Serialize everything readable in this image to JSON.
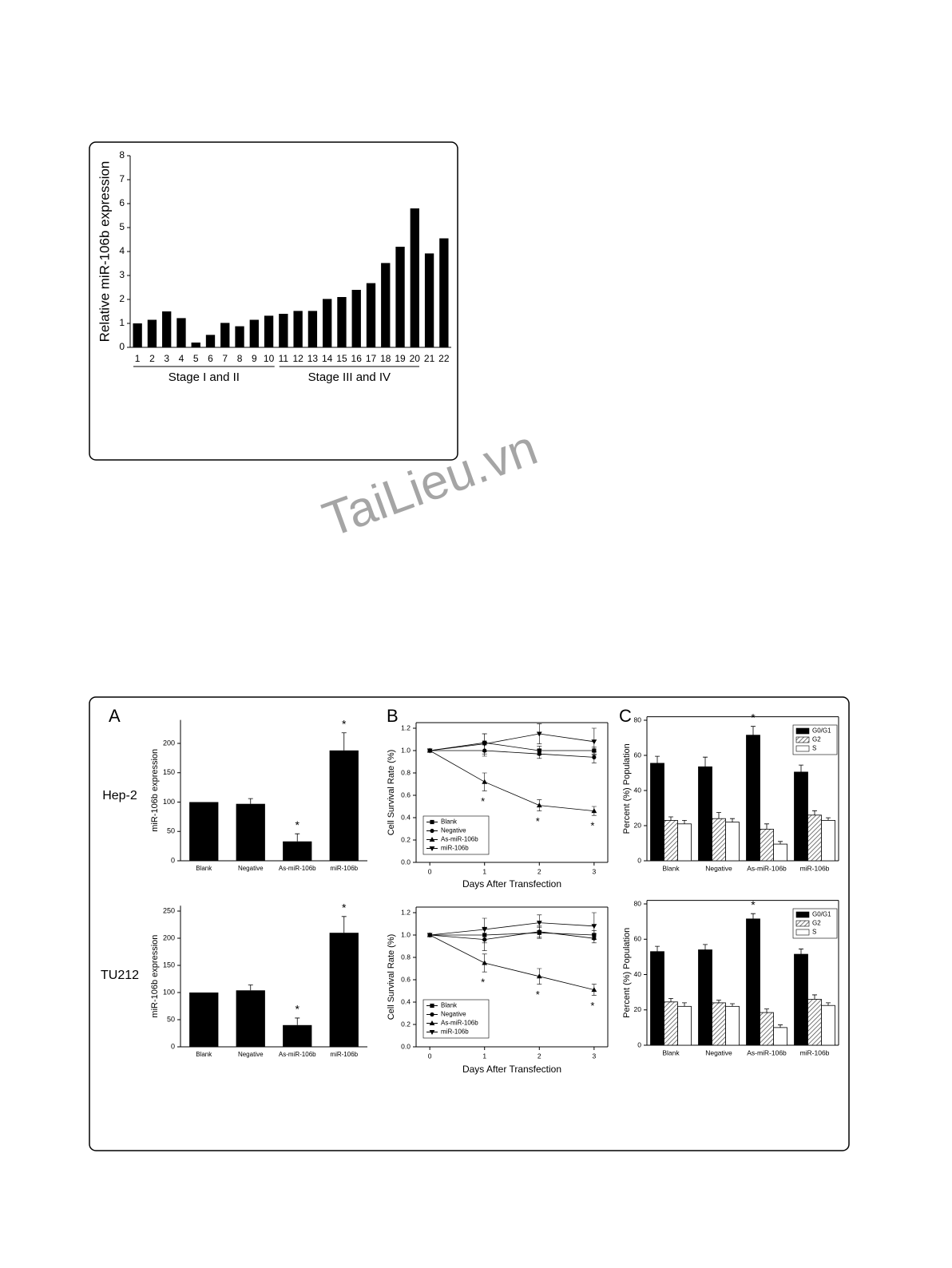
{
  "watermark": "TaiLieu.vn",
  "chart_data": [
    {
      "type": "bar",
      "ylabel": "Relative miR-106b expression",
      "categories": [
        "1",
        "2",
        "3",
        "4",
        "5",
        "6",
        "7",
        "8",
        "9",
        "10",
        "11",
        "12",
        "13",
        "14",
        "15",
        "16",
        "17",
        "18",
        "19",
        "20",
        "21",
        "22"
      ],
      "values": [
        1.0,
        1.15,
        1.5,
        1.22,
        0.2,
        0.52,
        1.02,
        0.88,
        1.15,
        1.32,
        1.4,
        1.52,
        1.52,
        2.02,
        2.1,
        2.4,
        2.68,
        3.52,
        4.2,
        5.8,
        3.92,
        4.55
      ],
      "color": "#000000",
      "ylim": [
        0,
        8
      ],
      "yticks": [
        0,
        1,
        2,
        3,
        4,
        5,
        6,
        7,
        8
      ],
      "group_labels": [
        "Stage I and II",
        "Stage III and IV"
      ]
    },
    {
      "type": "bar",
      "panel_label": "A",
      "row_label": "Hep-2",
      "ylabel": "miR-106b expression",
      "categories": [
        "Blank",
        "Negative",
        "As-miR-106b",
        "miR-106b"
      ],
      "values": [
        100,
        97,
        33,
        188
      ],
      "errors": [
        null,
        9,
        13,
        30
      ],
      "annotations": [
        null,
        null,
        "*",
        "*"
      ],
      "color": "#000000",
      "ylim": [
        0,
        240
      ],
      "yticks": [
        0,
        50,
        100,
        150,
        200
      ]
    },
    {
      "type": "bar",
      "row_label": "TU212",
      "ylabel": "miR-106b expression",
      "categories": [
        "Blank",
        "Negative",
        "As-miR-106b",
        "miR-106b"
      ],
      "values": [
        100,
        104,
        40,
        210
      ],
      "errors": [
        null,
        10,
        13,
        30
      ],
      "annotations": [
        null,
        null,
        "*",
        "*"
      ],
      "color": "#000000",
      "ylim": [
        0,
        260
      ],
      "yticks": [
        0,
        50,
        100,
        150,
        200,
        250
      ]
    },
    {
      "type": "line",
      "panel_label": "B",
      "xlabel": "Days After Transfection",
      "ylabel": "Cell Survival Rate (%)",
      "x": [
        0,
        1,
        2,
        3
      ],
      "xlim": [
        -0.25,
        3.25
      ],
      "xticks": [
        0,
        1,
        2,
        3
      ],
      "ylim": [
        0,
        1.25
      ],
      "yticks": [
        {
          "value": 0,
          "label": "0.0"
        },
        0.2,
        0.4,
        0.6,
        0.8,
        {
          "value": 1,
          "label": "1.0"
        },
        1.2
      ],
      "annotations": [
        null,
        "*",
        "*",
        "*"
      ],
      "series": [
        {
          "name": "Blank",
          "color": "#000000",
          "marker": "square",
          "values": [
            1,
            1.07,
            1.0,
            1.0
          ],
          "errors": [
            null,
            0.08,
            0.04,
            0.03
          ]
        },
        {
          "name": "Negative",
          "color": "#000000",
          "marker": "circle",
          "values": [
            1,
            1.0,
            0.97,
            0.94
          ],
          "errors": [
            null,
            0.05,
            0.04,
            0.05
          ]
        },
        {
          "name": "As-miR-106b",
          "color": "#000000",
          "marker": "triangle-up",
          "values": [
            1,
            0.72,
            0.51,
            0.46
          ],
          "errors": [
            null,
            0.08,
            0.05,
            0.04
          ]
        },
        {
          "name": "miR-106b",
          "color": "#000000",
          "marker": "triangle-down",
          "values": [
            1,
            1.06,
            1.15,
            1.08
          ],
          "errors": [
            null,
            0.09,
            0.09,
            0.12
          ]
        }
      ]
    },
    {
      "type": "line",
      "xlabel": "Days After Transfection",
      "ylabel": "Cell Survival Rate (%)",
      "x": [
        0,
        1,
        2,
        3
      ],
      "xlim": [
        -0.25,
        3.25
      ],
      "xticks": [
        0,
        1,
        2,
        3
      ],
      "ylim": [
        0,
        1.25
      ],
      "yticks": [
        {
          "value": 0,
          "label": "0.0"
        },
        0.2,
        0.4,
        0.6,
        0.8,
        {
          "value": 1,
          "label": "1.0"
        },
        1.2
      ],
      "annotations": [
        null,
        "*",
        "*",
        "*"
      ],
      "series": [
        {
          "name": "Blank",
          "color": "#000000",
          "marker": "square",
          "values": [
            1,
            1.0,
            1.02,
            1.0
          ],
          "errors": [
            null,
            0.07,
            0.05,
            0.04
          ]
        },
        {
          "name": "Negative",
          "color": "#000000",
          "marker": "circle",
          "values": [
            1,
            0.96,
            1.03,
            0.97
          ],
          "errors": [
            null,
            0.1,
            0.05,
            0.04
          ]
        },
        {
          "name": "As-miR-106b",
          "color": "#000000",
          "marker": "triangle-up",
          "values": [
            1,
            0.75,
            0.63,
            0.51
          ],
          "errors": [
            null,
            0.08,
            0.07,
            0.05
          ]
        },
        {
          "name": "miR-106b",
          "color": "#000000",
          "marker": "triangle-down",
          "values": [
            1,
            1.05,
            1.11,
            1.08
          ],
          "errors": [
            null,
            0.1,
            0.07,
            0.12
          ]
        }
      ]
    },
    {
      "type": "bar",
      "panel_label": "C",
      "ylabel": "Percent (%) Population",
      "categories": [
        "Blank",
        "Negative",
        "As-miR-106b",
        "miR-106b"
      ],
      "ylim": [
        0,
        82
      ],
      "yticks": [
        0,
        20,
        40,
        60,
        80
      ],
      "annotations": [
        null,
        null,
        "*",
        null
      ],
      "series": [
        {
          "name": "G0/G1",
          "color": "#000000",
          "values": [
            55.5,
            53.5,
            71.5,
            50.5
          ],
          "errors": [
            4,
            5.5,
            5,
            4
          ]
        },
        {
          "name": "G2",
          "color": "#888888",
          "pattern": "hatch",
          "values": [
            23,
            24,
            18,
            26
          ],
          "errors": [
            2,
            3.5,
            3,
            2.5
          ]
        },
        {
          "name": "S",
          "color": "#ffffff",
          "values": [
            21,
            22,
            9.5,
            23
          ],
          "errors": [
            2,
            2,
            1.5,
            1.5
          ]
        }
      ]
    },
    {
      "type": "bar",
      "ylabel": "Percent (%) Population",
      "categories": [
        "Blank",
        "Negative",
        "As-miR-106b",
        "miR-106b"
      ],
      "ylim": [
        0,
        82
      ],
      "yticks": [
        0,
        20,
        40,
        60,
        80
      ],
      "annotations": [
        null,
        null,
        "*",
        null
      ],
      "series": [
        {
          "name": "G0/G1",
          "color": "#000000",
          "values": [
            53,
            54,
            71.5,
            51.5
          ],
          "errors": [
            3,
            3,
            3,
            3
          ]
        },
        {
          "name": "G2",
          "color": "#888888",
          "pattern": "hatch",
          "values": [
            24.5,
            24,
            18.5,
            26
          ],
          "errors": [
            2,
            1.5,
            2,
            2.5
          ]
        },
        {
          "name": "S",
          "color": "#ffffff",
          "values": [
            22,
            22,
            10,
            22.5
          ],
          "errors": [
            2,
            1.5,
            1.5,
            1.5
          ]
        }
      ]
    }
  ]
}
